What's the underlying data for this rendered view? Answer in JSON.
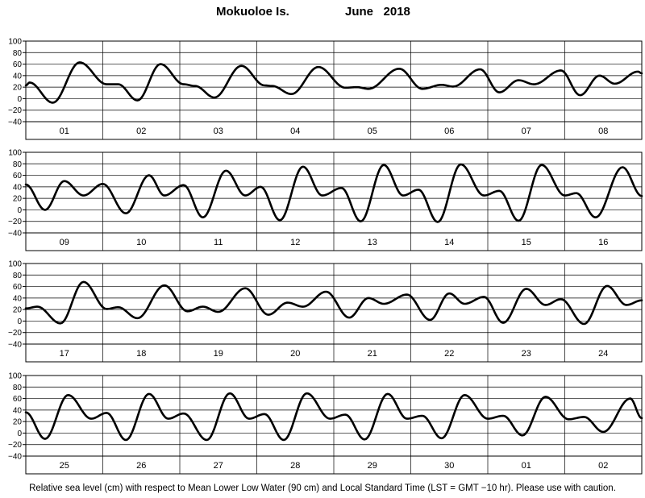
{
  "title": {
    "location": "Mokuoloe Is.",
    "month": "June",
    "year": "2018"
  },
  "footnote": "Relative sea level (cm) with respect to Mean Lower Low Water (90 cm) and Local Standard Time (LST = GMT −10 hr). Please use with caution.",
  "chart_data": {
    "type": "line",
    "title": "Mokuoloe Is.   June 2018",
    "ylabel": "",
    "xlabel": "",
    "ylim": [
      -40,
      100
    ],
    "yticks": [
      -40,
      -20,
      0,
      20,
      40,
      60,
      80,
      100
    ],
    "grid": true,
    "series_color": "#000000",
    "panels": [
      {
        "days": [
          "01",
          "02",
          "03",
          "04",
          "05",
          "06",
          "07",
          "08"
        ],
        "extrema": [
          [
            0,
            23
          ],
          [
            0.05,
            28
          ],
          [
            0.35,
            -7
          ],
          [
            0.7,
            63
          ],
          [
            1.05,
            25
          ],
          [
            1.2,
            25
          ],
          [
            1.45,
            -3
          ],
          [
            1.75,
            60
          ],
          [
            2.05,
            25
          ],
          [
            2.2,
            22
          ],
          [
            2.45,
            2
          ],
          [
            2.8,
            57
          ],
          [
            3.1,
            23
          ],
          [
            3.2,
            22
          ],
          [
            3.45,
            8
          ],
          [
            3.8,
            55
          ],
          [
            4.15,
            19
          ],
          [
            4.3,
            20
          ],
          [
            4.45,
            17
          ],
          [
            4.85,
            52
          ],
          [
            5.15,
            17
          ],
          [
            5.4,
            24
          ],
          [
            5.55,
            21
          ],
          [
            5.9,
            51
          ],
          [
            6.15,
            11
          ],
          [
            6.4,
            32
          ],
          [
            6.6,
            25
          ],
          [
            6.95,
            49
          ],
          [
            7.2,
            6
          ],
          [
            7.45,
            40
          ],
          [
            7.65,
            26
          ],
          [
            7.95,
            47
          ],
          [
            8,
            44
          ]
        ]
      },
      {
        "days": [
          "09",
          "10",
          "11",
          "12",
          "13",
          "14",
          "15",
          "16"
        ],
        "extrema": [
          [
            0,
            44
          ],
          [
            0.25,
            0
          ],
          [
            0.5,
            50
          ],
          [
            0.75,
            25
          ],
          [
            1,
            45
          ],
          [
            1.3,
            -6
          ],
          [
            1.6,
            60
          ],
          [
            1.8,
            25
          ],
          [
            2.05,
            43
          ],
          [
            2.3,
            -13
          ],
          [
            2.6,
            68
          ],
          [
            2.85,
            25
          ],
          [
            3.05,
            40
          ],
          [
            3.3,
            -18
          ],
          [
            3.6,
            75
          ],
          [
            3.85,
            25
          ],
          [
            4.1,
            38
          ],
          [
            4.35,
            -20
          ],
          [
            4.65,
            78
          ],
          [
            4.9,
            25
          ],
          [
            5.1,
            35
          ],
          [
            5.35,
            -21
          ],
          [
            5.65,
            79
          ],
          [
            5.95,
            25
          ],
          [
            6.15,
            33
          ],
          [
            6.4,
            -19
          ],
          [
            6.7,
            78
          ],
          [
            7,
            25
          ],
          [
            7.15,
            29
          ],
          [
            7.4,
            -13
          ],
          [
            7.75,
            74
          ],
          [
            8,
            24
          ]
        ]
      },
      {
        "days": [
          "17",
          "18",
          "19",
          "20",
          "21",
          "22",
          "23",
          "24"
        ],
        "extrema": [
          [
            0,
            22
          ],
          [
            0.15,
            25
          ],
          [
            0.45,
            -4
          ],
          [
            0.75,
            68
          ],
          [
            1.05,
            21
          ],
          [
            1.2,
            24
          ],
          [
            1.45,
            5
          ],
          [
            1.8,
            62
          ],
          [
            2.1,
            17
          ],
          [
            2.3,
            25
          ],
          [
            2.5,
            16
          ],
          [
            2.85,
            57
          ],
          [
            3.15,
            11
          ],
          [
            3.4,
            32
          ],
          [
            3.6,
            25
          ],
          [
            3.9,
            51
          ],
          [
            4.2,
            6
          ],
          [
            4.45,
            40
          ],
          [
            4.65,
            30
          ],
          [
            4.95,
            46
          ],
          [
            5.25,
            2
          ],
          [
            5.5,
            48
          ],
          [
            5.7,
            30
          ],
          [
            5.95,
            42
          ],
          [
            6.2,
            -3
          ],
          [
            6.5,
            56
          ],
          [
            6.75,
            28
          ],
          [
            6.95,
            38
          ],
          [
            7.25,
            -5
          ],
          [
            7.55,
            61
          ],
          [
            7.8,
            28
          ],
          [
            8,
            36
          ]
        ]
      },
      {
        "days": [
          "25",
          "26",
          "27",
          "28",
          "29",
          "30",
          "01",
          "02"
        ],
        "extrema": [
          [
            0,
            36
          ],
          [
            0.25,
            -10
          ],
          [
            0.55,
            66
          ],
          [
            0.85,
            25
          ],
          [
            1.05,
            35
          ],
          [
            1.3,
            -12
          ],
          [
            1.6,
            68
          ],
          [
            1.85,
            25
          ],
          [
            2.05,
            34
          ],
          [
            2.35,
            -12
          ],
          [
            2.65,
            69
          ],
          [
            2.9,
            25
          ],
          [
            3.1,
            33
          ],
          [
            3.35,
            -12
          ],
          [
            3.65,
            69
          ],
          [
            3.95,
            25
          ],
          [
            4.15,
            32
          ],
          [
            4.4,
            -11
          ],
          [
            4.7,
            68
          ],
          [
            4.95,
            25
          ],
          [
            5.15,
            30
          ],
          [
            5.4,
            -9
          ],
          [
            5.7,
            66
          ],
          [
            6.0,
            25
          ],
          [
            6.2,
            30
          ],
          [
            6.45,
            -4
          ],
          [
            6.75,
            63
          ],
          [
            7.05,
            24
          ],
          [
            7.25,
            28
          ],
          [
            7.5,
            2
          ],
          [
            7.85,
            60
          ],
          [
            8,
            26
          ]
        ]
      }
    ]
  }
}
